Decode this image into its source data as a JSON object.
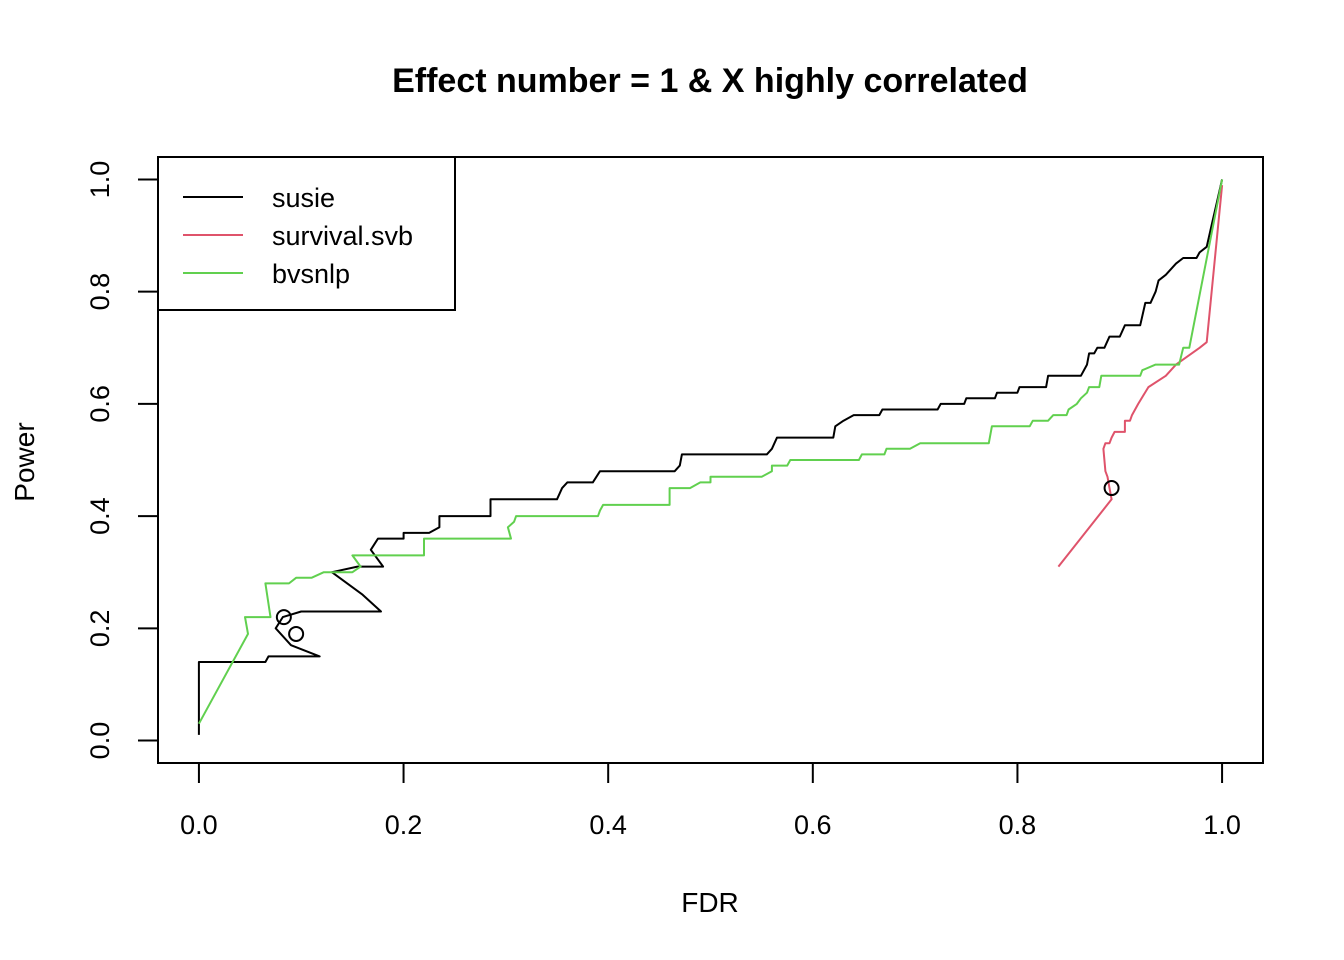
{
  "chart_data": {
    "type": "line",
    "title": "Effect number = 1 & X highly correlated",
    "xlabel": "FDR",
    "ylabel": "Power",
    "xlim": [
      -0.04,
      1.04
    ],
    "ylim": [
      -0.04,
      1.04
    ],
    "x_ticks": [
      "0.0",
      "0.2",
      "0.4",
      "0.6",
      "0.8",
      "1.0"
    ],
    "y_ticks": [
      "0.0",
      "0.2",
      "0.4",
      "0.6",
      "0.8",
      "1.0"
    ],
    "grid": false,
    "legend_position": "top-left",
    "series": [
      {
        "name": "susie",
        "color": "#000000",
        "points": [
          [
            0.0,
            0.01
          ],
          [
            0.0,
            0.14
          ],
          [
            0.065,
            0.14
          ],
          [
            0.068,
            0.15
          ],
          [
            0.08,
            0.15
          ],
          [
            0.118,
            0.15
          ],
          [
            0.09,
            0.17
          ],
          [
            0.075,
            0.2
          ],
          [
            0.082,
            0.22
          ],
          [
            0.1,
            0.23
          ],
          [
            0.178,
            0.23
          ],
          [
            0.16,
            0.26
          ],
          [
            0.13,
            0.3
          ],
          [
            0.155,
            0.31
          ],
          [
            0.18,
            0.31
          ],
          [
            0.168,
            0.34
          ],
          [
            0.175,
            0.36
          ],
          [
            0.2,
            0.36
          ],
          [
            0.2,
            0.37
          ],
          [
            0.225,
            0.37
          ],
          [
            0.235,
            0.38
          ],
          [
            0.235,
            0.4
          ],
          [
            0.285,
            0.4
          ],
          [
            0.285,
            0.43
          ],
          [
            0.35,
            0.43
          ],
          [
            0.355,
            0.45
          ],
          [
            0.36,
            0.46
          ],
          [
            0.385,
            0.46
          ],
          [
            0.392,
            0.48
          ],
          [
            0.465,
            0.48
          ],
          [
            0.47,
            0.49
          ],
          [
            0.472,
            0.51
          ],
          [
            0.555,
            0.51
          ],
          [
            0.56,
            0.52
          ],
          [
            0.565,
            0.54
          ],
          [
            0.62,
            0.54
          ],
          [
            0.622,
            0.56
          ],
          [
            0.63,
            0.57
          ],
          [
            0.64,
            0.58
          ],
          [
            0.665,
            0.58
          ],
          [
            0.668,
            0.59
          ],
          [
            0.722,
            0.59
          ],
          [
            0.725,
            0.6
          ],
          [
            0.748,
            0.6
          ],
          [
            0.75,
            0.61
          ],
          [
            0.778,
            0.61
          ],
          [
            0.78,
            0.62
          ],
          [
            0.8,
            0.62
          ],
          [
            0.802,
            0.63
          ],
          [
            0.828,
            0.63
          ],
          [
            0.83,
            0.65
          ],
          [
            0.862,
            0.65
          ],
          [
            0.868,
            0.67
          ],
          [
            0.87,
            0.69
          ],
          [
            0.875,
            0.69
          ],
          [
            0.878,
            0.7
          ],
          [
            0.885,
            0.7
          ],
          [
            0.89,
            0.72
          ],
          [
            0.9,
            0.72
          ],
          [
            0.905,
            0.74
          ],
          [
            0.92,
            0.74
          ],
          [
            0.925,
            0.78
          ],
          [
            0.93,
            0.78
          ],
          [
            0.935,
            0.8
          ],
          [
            0.938,
            0.82
          ],
          [
            0.945,
            0.83
          ],
          [
            0.95,
            0.84
          ],
          [
            0.955,
            0.85
          ],
          [
            0.962,
            0.86
          ],
          [
            0.975,
            0.86
          ],
          [
            0.978,
            0.87
          ],
          [
            0.985,
            0.88
          ],
          [
            0.99,
            0.92
          ],
          [
            0.995,
            0.96
          ],
          [
            1.0,
            1.0
          ]
        ]
      },
      {
        "name": "survival.svb",
        "color": "#DF536B",
        "points": [
          [
            0.84,
            0.31
          ],
          [
            0.892,
            0.43
          ],
          [
            0.89,
            0.45
          ],
          [
            0.888,
            0.47
          ],
          [
            0.886,
            0.48
          ],
          [
            0.885,
            0.5
          ],
          [
            0.884,
            0.52
          ],
          [
            0.886,
            0.53
          ],
          [
            0.89,
            0.53
          ],
          [
            0.892,
            0.54
          ],
          [
            0.895,
            0.55
          ],
          [
            0.905,
            0.55
          ],
          [
            0.905,
            0.57
          ],
          [
            0.91,
            0.57
          ],
          [
            0.912,
            0.58
          ],
          [
            0.918,
            0.6
          ],
          [
            0.928,
            0.63
          ],
          [
            0.945,
            0.65
          ],
          [
            0.955,
            0.67
          ],
          [
            0.978,
            0.7
          ],
          [
            0.985,
            0.71
          ],
          [
            1.0,
            0.99
          ]
        ]
      },
      {
        "name": "bvsnlp",
        "color": "#61D04F",
        "points": [
          [
            0.0,
            0.03
          ],
          [
            0.048,
            0.19
          ],
          [
            0.045,
            0.22
          ],
          [
            0.07,
            0.22
          ],
          [
            0.065,
            0.28
          ],
          [
            0.088,
            0.28
          ],
          [
            0.095,
            0.29
          ],
          [
            0.11,
            0.29
          ],
          [
            0.122,
            0.3
          ],
          [
            0.15,
            0.3
          ],
          [
            0.158,
            0.31
          ],
          [
            0.15,
            0.33
          ],
          [
            0.155,
            0.33
          ],
          [
            0.2,
            0.33
          ],
          [
            0.22,
            0.33
          ],
          [
            0.22,
            0.36
          ],
          [
            0.305,
            0.36
          ],
          [
            0.302,
            0.38
          ],
          [
            0.308,
            0.39
          ],
          [
            0.31,
            0.4
          ],
          [
            0.39,
            0.4
          ],
          [
            0.392,
            0.41
          ],
          [
            0.395,
            0.42
          ],
          [
            0.46,
            0.42
          ],
          [
            0.46,
            0.45
          ],
          [
            0.48,
            0.45
          ],
          [
            0.49,
            0.46
          ],
          [
            0.5,
            0.46
          ],
          [
            0.5,
            0.47
          ],
          [
            0.55,
            0.47
          ],
          [
            0.56,
            0.48
          ],
          [
            0.56,
            0.49
          ],
          [
            0.575,
            0.49
          ],
          [
            0.578,
            0.5
          ],
          [
            0.645,
            0.5
          ],
          [
            0.648,
            0.51
          ],
          [
            0.67,
            0.51
          ],
          [
            0.672,
            0.52
          ],
          [
            0.695,
            0.52
          ],
          [
            0.705,
            0.53
          ],
          [
            0.772,
            0.53
          ],
          [
            0.775,
            0.56
          ],
          [
            0.812,
            0.56
          ],
          [
            0.815,
            0.57
          ],
          [
            0.83,
            0.57
          ],
          [
            0.835,
            0.58
          ],
          [
            0.848,
            0.58
          ],
          [
            0.85,
            0.59
          ],
          [
            0.858,
            0.6
          ],
          [
            0.862,
            0.61
          ],
          [
            0.868,
            0.62
          ],
          [
            0.87,
            0.63
          ],
          [
            0.88,
            0.63
          ],
          [
            0.882,
            0.65
          ],
          [
            0.92,
            0.65
          ],
          [
            0.922,
            0.66
          ],
          [
            0.935,
            0.67
          ],
          [
            0.958,
            0.67
          ],
          [
            0.962,
            0.7
          ],
          [
            0.968,
            0.7
          ],
          [
            1.0,
            1.0
          ]
        ]
      }
    ],
    "markers": [
      {
        "series": "susie",
        "x": 0.083,
        "y": 0.22
      },
      {
        "series": "susie",
        "x": 0.095,
        "y": 0.19
      },
      {
        "series": "survival.svb",
        "x": 0.892,
        "y": 0.45
      }
    ]
  }
}
